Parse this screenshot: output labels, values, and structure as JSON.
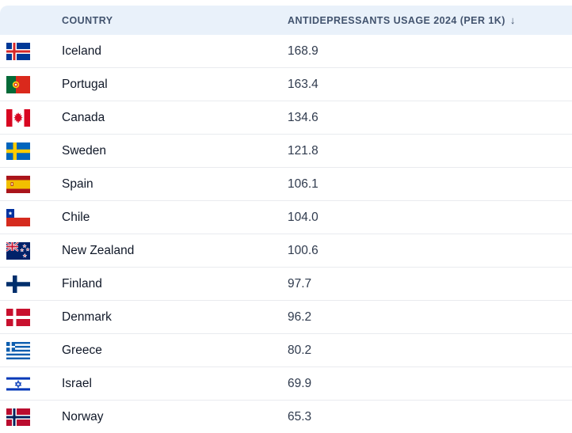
{
  "table": {
    "columns": [
      {
        "label": "COUNTRY"
      },
      {
        "label": "ANTIDEPRESSANTS USAGE 2024 (PER 1K)",
        "sort_icon": "↓",
        "sort_direction": "descending"
      }
    ],
    "rows": [
      {
        "country": "Iceland",
        "flag": "iceland",
        "value": "168.9"
      },
      {
        "country": "Portugal",
        "flag": "portugal",
        "value": "163.4"
      },
      {
        "country": "Canada",
        "flag": "canada",
        "value": "134.6"
      },
      {
        "country": "Sweden",
        "flag": "sweden",
        "value": "121.8"
      },
      {
        "country": "Spain",
        "flag": "spain",
        "value": "106.1"
      },
      {
        "country": "Chile",
        "flag": "chile",
        "value": "104.0"
      },
      {
        "country": "New Zealand",
        "flag": "new-zealand",
        "value": "100.6"
      },
      {
        "country": "Finland",
        "flag": "finland",
        "value": "97.7"
      },
      {
        "country": "Denmark",
        "flag": "denmark",
        "value": "96.2"
      },
      {
        "country": "Greece",
        "flag": "greece",
        "value": "80.2"
      },
      {
        "country": "Israel",
        "flag": "israel",
        "value": "69.9"
      },
      {
        "country": "Norway",
        "flag": "norway",
        "value": "65.3"
      }
    ]
  },
  "colors": {
    "header_bg": "#e9f1fa",
    "header_text": "#42536e",
    "row_border": "#e9ebef",
    "country_text": "#101828",
    "value_text": "#303b4e"
  }
}
